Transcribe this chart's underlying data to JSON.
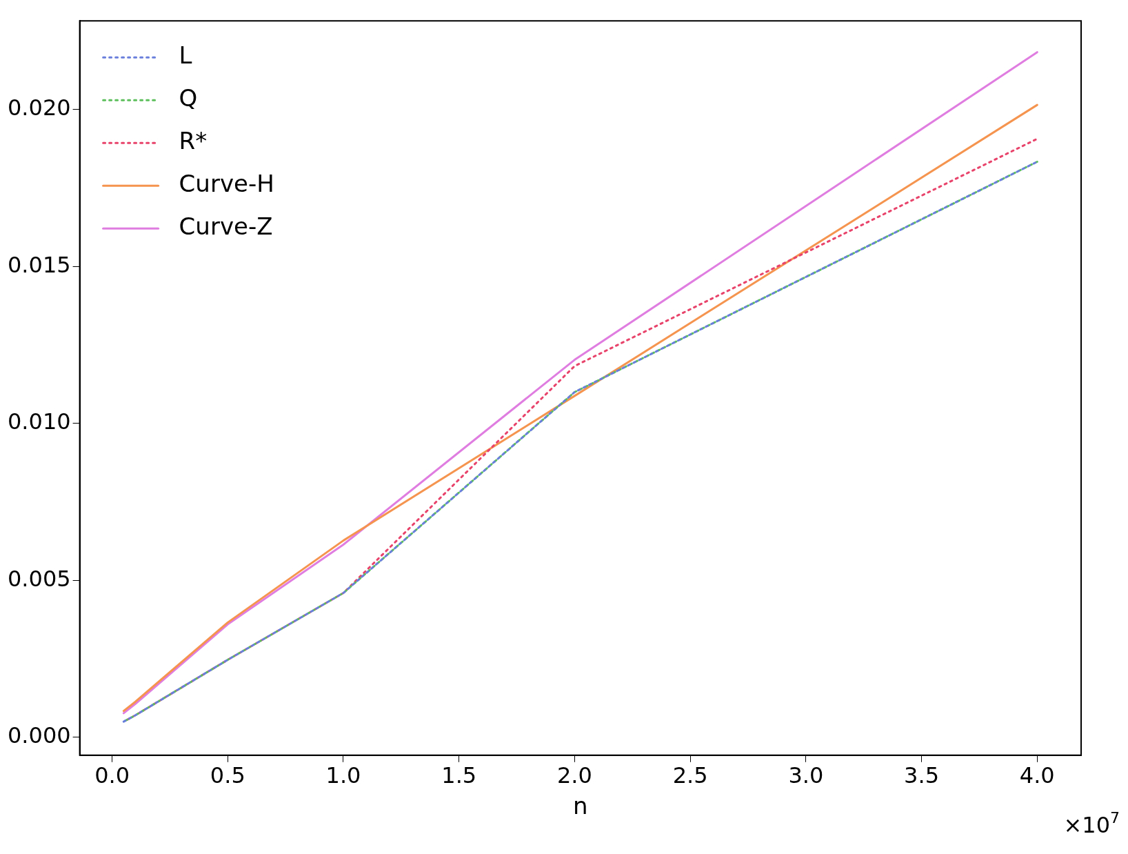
{
  "chart_data": {
    "type": "line",
    "xlabel": "n",
    "annotations": [
      "×10$^{7}$"
    ],
    "x": [
      0.05,
      0.1,
      0.5,
      1,
      2,
      4
    ],
    "xlim": [
      -0.14,
      4.19
    ],
    "xticks": [
      {
        "value": 0,
        "label": "0.0"
      },
      0.5,
      {
        "value": 1,
        "label": "1.0"
      },
      1.5,
      {
        "value": 2,
        "label": "2.0"
      },
      2.5,
      {
        "value": 3,
        "label": "3.0"
      },
      3.5,
      {
        "value": 4,
        "label": "4.0"
      }
    ],
    "ylim": [
      -0.00057,
      0.02283
    ],
    "yticks": [
      {
        "value": 0,
        "label": "0.000"
      },
      {
        "value": 0.005,
        "label": "0.005"
      },
      {
        "value": 0.01,
        "label": "0.010"
      },
      {
        "value": 0.015,
        "label": "0.015"
      },
      {
        "value": 0.02,
        "label": "0.020"
      }
    ],
    "grid": false,
    "legend": "top left",
    "marker": "none",
    "series": [
      {
        "name": "L",
        "color": "#6a7fdb",
        "line_style": "dashed",
        "values": [
          0.0005,
          0.0007,
          0.00247,
          0.0046,
          0.011,
          0.01834
        ]
      },
      {
        "name": "Q",
        "color": "#5cbf5c",
        "line_style": "dashed",
        "values": [
          0.0005,
          0.0007,
          0.00247,
          0.0046,
          0.011,
          0.01834
        ]
      },
      {
        "name": "R*",
        "color": "#e8436a",
        "line_style": "dashed",
        "values": [
          0.0005,
          0.0007,
          0.00247,
          0.0046,
          0.01183,
          0.01907
        ]
      },
      {
        "name": "Curve-H",
        "color": "#f5944e",
        "line_style": "solid",
        "values": [
          0.00084,
          0.00113,
          0.00366,
          0.00627,
          0.01088,
          0.02015
        ]
      },
      {
        "name": "Curve-Z",
        "color": "#e07de0",
        "line_style": "solid",
        "values": [
          0.00077,
          0.00106,
          0.0036,
          0.00614,
          0.01203,
          0.02183
        ]
      }
    ]
  }
}
